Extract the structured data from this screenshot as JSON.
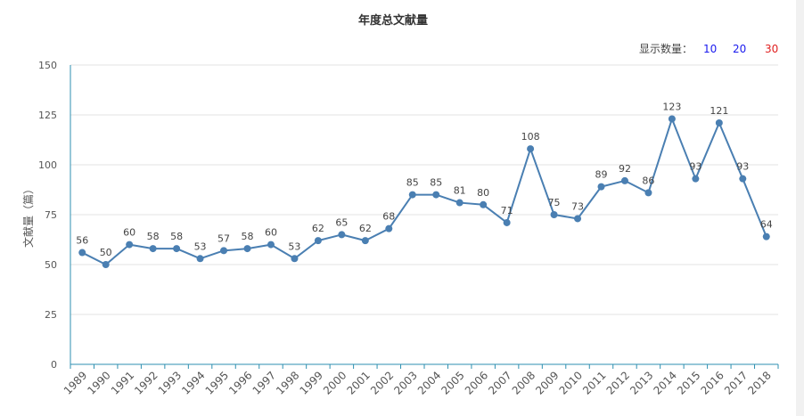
{
  "chart_data": {
    "type": "line",
    "title": "年度总文献量",
    "ylabel": "文献量（篇）",
    "categories": [
      "1989",
      "1990",
      "1991",
      "1992",
      "1993",
      "1994",
      "1995",
      "1996",
      "1997",
      "1998",
      "1999",
      "2000",
      "2001",
      "2002",
      "2003",
      "2004",
      "2005",
      "2006",
      "2007",
      "2008",
      "2009",
      "2010",
      "2011",
      "2012",
      "2013",
      "2014",
      "2015",
      "2016",
      "2017",
      "2018"
    ],
    "series": [
      {
        "values": [
          56,
          50,
          60,
          58,
          58,
          53,
          57,
          58,
          60,
          53,
          62,
          65,
          62,
          68,
          85,
          85,
          81,
          80,
          71,
          108,
          75,
          73,
          89,
          92,
          86,
          123,
          93,
          121,
          93,
          64
        ],
        "color": "#4a7fb2"
      }
    ],
    "ylim": [
      0,
      150
    ],
    "yticks": [
      0,
      25,
      50,
      75,
      100,
      125,
      150
    ],
    "grid": true,
    "data_labels": true,
    "axis_color": "#2e8fb0"
  },
  "display_count": {
    "label": "显示数量：",
    "options": [
      {
        "label": "10",
        "color": "#1a1aee"
      },
      {
        "label": "20",
        "color": "#1a1aee"
      },
      {
        "label": "30",
        "color": "#e02020",
        "selected": true
      }
    ]
  }
}
